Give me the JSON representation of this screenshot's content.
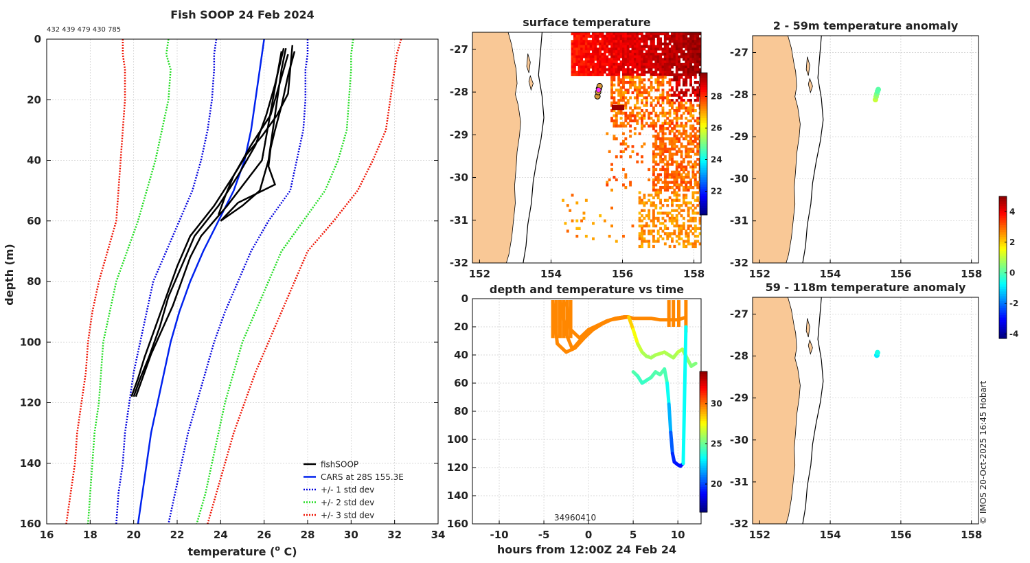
{
  "footer": "© IMOS 20-Oct-2025 16:45 Hobart",
  "colors": {
    "fishsoop": "#000000",
    "cars": "#0022ee",
    "sd1": "#0000dd",
    "sd2": "#22dd22",
    "sd3": "#ee1100",
    "land": "#f9c896",
    "grid": "#cccccc"
  },
  "chart_data": [
    {
      "id": "profile",
      "type": "line",
      "title": "Fish SOOP 24 Feb 2024",
      "subtitle": "432 439 479 430 785",
      "xlabel": "temperature (",
      "xlabel_sup": "o",
      "xlabel_tail": " C)",
      "ylabel": "depth (m)",
      "xlim": [
        16,
        34
      ],
      "ylim": [
        0,
        160
      ],
      "y_reversed": true,
      "xticks": [
        16,
        18,
        20,
        22,
        24,
        26,
        28,
        30,
        32,
        34
      ],
      "yticks": [
        0,
        20,
        40,
        60,
        80,
        100,
        120,
        140,
        160
      ],
      "legend_position": "bottom-right",
      "legend": [
        {
          "label": "fishSOOP",
          "color": "#000000",
          "style": "solid"
        },
        {
          "label": "CARS at 28S 155.3E",
          "color": "#0022ee",
          "style": "solid"
        },
        {
          "label": "+/- 1 std dev",
          "color": "#0000dd",
          "style": "dotted"
        },
        {
          "label": "+/- 2 std dev",
          "color": "#22dd22",
          "style": "dotted"
        },
        {
          "label": "+/- 3 std dev",
          "color": "#ee1100",
          "style": "dotted"
        }
      ],
      "depths": [
        0,
        5,
        10,
        20,
        30,
        40,
        50,
        60,
        70,
        80,
        90,
        100,
        110,
        120,
        130,
        140,
        150,
        160
      ],
      "cars": [
        26.0,
        25.9,
        25.8,
        25.6,
        25.4,
        25.1,
        24.6,
        23.9,
        23.2,
        22.6,
        22.1,
        21.7,
        21.4,
        21.1,
        20.8,
        20.6,
        20.4,
        20.2
      ],
      "bounds": [
        {
          "name": "-3",
          "color": "#ee1100",
          "values": [
            19.5,
            19.5,
            19.6,
            19.6,
            19.5,
            19.4,
            19.3,
            19.2,
            18.8,
            18.4,
            18.1,
            17.9,
            17.8,
            17.6,
            17.4,
            17.3,
            17.1,
            16.9
          ]
        },
        {
          "name": "-2",
          "color": "#22dd22",
          "values": [
            21.6,
            21.5,
            21.7,
            21.6,
            21.3,
            21.0,
            20.6,
            20.2,
            19.7,
            19.2,
            18.9,
            18.6,
            18.5,
            18.4,
            18.2,
            18.1,
            18.0,
            17.9
          ]
        },
        {
          "name": "-1",
          "color": "#0000dd",
          "values": [
            23.8,
            23.7,
            23.7,
            23.6,
            23.4,
            23.1,
            22.7,
            22.1,
            21.5,
            20.9,
            20.6,
            20.3,
            20.0,
            19.8,
            19.6,
            19.5,
            19.3,
            19.2
          ]
        },
        {
          "name": "+1",
          "color": "#0000dd",
          "values": [
            28.0,
            28.0,
            27.9,
            27.9,
            27.8,
            27.5,
            27.2,
            26.2,
            25.4,
            24.8,
            24.2,
            23.7,
            23.3,
            22.9,
            22.5,
            22.2,
            21.9,
            21.6
          ]
        },
        {
          "name": "+2",
          "color": "#22dd22",
          "values": [
            30.1,
            30.0,
            30.0,
            29.9,
            29.8,
            29.4,
            28.8,
            27.8,
            26.8,
            26.2,
            25.6,
            25.0,
            24.6,
            24.2,
            23.9,
            23.6,
            23.3,
            22.9
          ]
        },
        {
          "name": "+3",
          "color": "#ee1100",
          "values": [
            32.3,
            32.1,
            32.0,
            31.8,
            31.6,
            31.0,
            30.3,
            29.2,
            28.0,
            27.4,
            26.8,
            26.2,
            25.6,
            25.1,
            24.6,
            24.2,
            23.8,
            23.4
          ]
        }
      ],
      "fishsoop_profiles": [
        {
          "depths": [
            3,
            10,
            20,
            30,
            40,
            50,
            55,
            60
          ],
          "temps": [
            27.0,
            26.8,
            26.6,
            26.4,
            26.2,
            25.8,
            25.0,
            24.0
          ]
        },
        {
          "depths": [
            2,
            10,
            18,
            25,
            32,
            38,
            45,
            52,
            58
          ],
          "temps": [
            27.3,
            27.2,
            27.1,
            26.6,
            25.9,
            25.2,
            24.6,
            24.2,
            23.9
          ]
        },
        {
          "depths": [
            4,
            12,
            22,
            30,
            36,
            42,
            48,
            54,
            60
          ],
          "temps": [
            27.4,
            27.1,
            26.8,
            26.5,
            26.3,
            26.2,
            26.5,
            24.8,
            24.0
          ]
        },
        {
          "depths": [
            3,
            15,
            25,
            35,
            45,
            55,
            65,
            75,
            85,
            95,
            105,
            112,
            118
          ],
          "temps": [
            26.9,
            26.5,
            26.1,
            25.6,
            24.8,
            23.9,
            22.8,
            22.2,
            21.6,
            21.2,
            20.7,
            20.3,
            20.0
          ]
        },
        {
          "depths": [
            5,
            15,
            25,
            35,
            45,
            55,
            65,
            75,
            85,
            95,
            105,
            112,
            118
          ],
          "temps": [
            27.1,
            26.7,
            26.3,
            25.4,
            24.6,
            23.7,
            22.6,
            22.0,
            21.5,
            21.0,
            20.5,
            20.2,
            19.9
          ]
        },
        {
          "depths": [
            4,
            20,
            40,
            55,
            65,
            72,
            80,
            88,
            96,
            104,
            112,
            118
          ],
          "temps": [
            26.8,
            26.4,
            25.9,
            24.3,
            23.1,
            22.6,
            22.2,
            21.8,
            21.3,
            20.8,
            20.4,
            20.1
          ]
        }
      ]
    },
    {
      "id": "sst",
      "type": "heatmap",
      "title": "surface temperature",
      "xlim": [
        151.8,
        158.2
      ],
      "ylim": [
        -32,
        -26.6
      ],
      "xticks": [
        152,
        154,
        156,
        158
      ],
      "yticks": [
        -27,
        -28,
        -29,
        -30,
        -31,
        -32
      ],
      "colorbar": {
        "min": 20.5,
        "max": 29.5,
        "ticks": [
          22,
          24,
          26,
          28
        ]
      },
      "vessel_track": [
        [
          155.3,
          -28.1
        ],
        [
          155.32,
          -28.0
        ],
        [
          155.34,
          -27.92
        ],
        [
          155.36,
          -27.86
        ]
      ]
    },
    {
      "id": "anom_shallow",
      "type": "scatter",
      "title": "2 - 59m temperature anomaly",
      "xlim": [
        151.8,
        158.2
      ],
      "ylim": [
        -32,
        -26.6
      ],
      "xticks": [
        152,
        154,
        156,
        158
      ],
      "yticks": [
        -27,
        -28,
        -29,
        -30,
        -31,
        -32
      ],
      "points": [
        [
          155.28,
          -28.12,
          1.0
        ],
        [
          155.3,
          -28.05,
          0.6
        ],
        [
          155.32,
          -27.98,
          0.3
        ],
        [
          155.34,
          -27.92,
          0.0
        ],
        [
          155.36,
          -27.88,
          0.0
        ]
      ]
    },
    {
      "id": "anom_deep",
      "type": "scatter",
      "title": "59 - 118m temperature anomaly",
      "xlim": [
        151.8,
        158.2
      ],
      "ylim": [
        -32,
        -26.6
      ],
      "xticks": [
        152,
        154,
        156,
        158
      ],
      "yticks": [
        -27,
        -28,
        -29,
        -30,
        -31,
        -32
      ],
      "points": [
        [
          155.32,
          -27.98,
          -1.0
        ],
        [
          155.34,
          -27.92,
          -0.6
        ]
      ]
    },
    {
      "id": "anom_colorbar",
      "type": "colorbar",
      "min": -4.3,
      "max": 5.0,
      "ticks": [
        -4,
        -2,
        0,
        2,
        4
      ]
    },
    {
      "id": "timeseries",
      "type": "scatter",
      "title": "depth and temperature vs time",
      "xlabel": "hours from 12:00Z 24 Feb 24",
      "xlim": [
        -13,
        12.6
      ],
      "ylim": [
        0,
        160
      ],
      "y_reversed": true,
      "xticks": [
        -10,
        -5,
        0,
        5,
        10
      ],
      "yticks": [
        0,
        20,
        40,
        60,
        80,
        100,
        120,
        140,
        160
      ],
      "colorbar": {
        "min": 16.5,
        "max": 34,
        "ticks": [
          20,
          25,
          30
        ]
      },
      "bottom_label": "34960410",
      "casts": [
        {
          "times": [
            -4.0,
            -3.5,
            -2.5,
            -1.5,
            -0.5,
            0.5,
            1.5,
            2.5,
            3.5,
            4.5
          ],
          "depths": [
            2,
            32,
            38,
            35,
            28,
            22,
            18,
            15,
            14,
            13
          ]
        },
        {
          "times": [
            -3.2,
            -2.5,
            -1.8,
            -1.0,
            0.0,
            1.0,
            2.0,
            3.0,
            4.0,
            4.5
          ],
          "depths": [
            2,
            25,
            36,
            30,
            24,
            20,
            16,
            14,
            13,
            13
          ]
        },
        {
          "times": [
            -2.5,
            -2.0,
            -1.0,
            0.0,
            1.0,
            2.0,
            3.0,
            4.0,
            4.5
          ],
          "depths": [
            2,
            22,
            28,
            22,
            19,
            16,
            14,
            13,
            13
          ]
        },
        {
          "times": [
            4.5,
            5.0,
            6.0,
            7.0,
            8.0,
            9.0,
            10.0,
            10.5,
            11.0
          ],
          "depths": [
            13,
            14,
            14,
            14,
            15,
            15,
            15,
            14,
            13
          ]
        }
      ],
      "warm_track": {
        "times": [
          4.5,
          5.0,
          5.5,
          6.0,
          6.5,
          7.0,
          7.5,
          8.0,
          8.5,
          9.0,
          9.5,
          10.0,
          10.5,
          11.0,
          11.5,
          12.0
        ],
        "depths": [
          13,
          22,
          32,
          38,
          41,
          42,
          40,
          39,
          38,
          40,
          42,
          38,
          36,
          42,
          48,
          46
        ]
      },
      "deep_track": {
        "times": [
          5.0,
          5.5,
          6.0,
          6.5,
          7.0,
          7.5,
          8.0,
          8.5,
          8.8,
          9.0,
          9.2,
          9.4,
          9.6,
          10.0,
          10.3,
          10.6,
          10.9
        ],
        "depths": [
          52,
          55,
          60,
          58,
          56,
          52,
          54,
          50,
          60,
          75,
          95,
          110,
          116,
          118,
          119,
          117,
          20
        ]
      }
    }
  ]
}
